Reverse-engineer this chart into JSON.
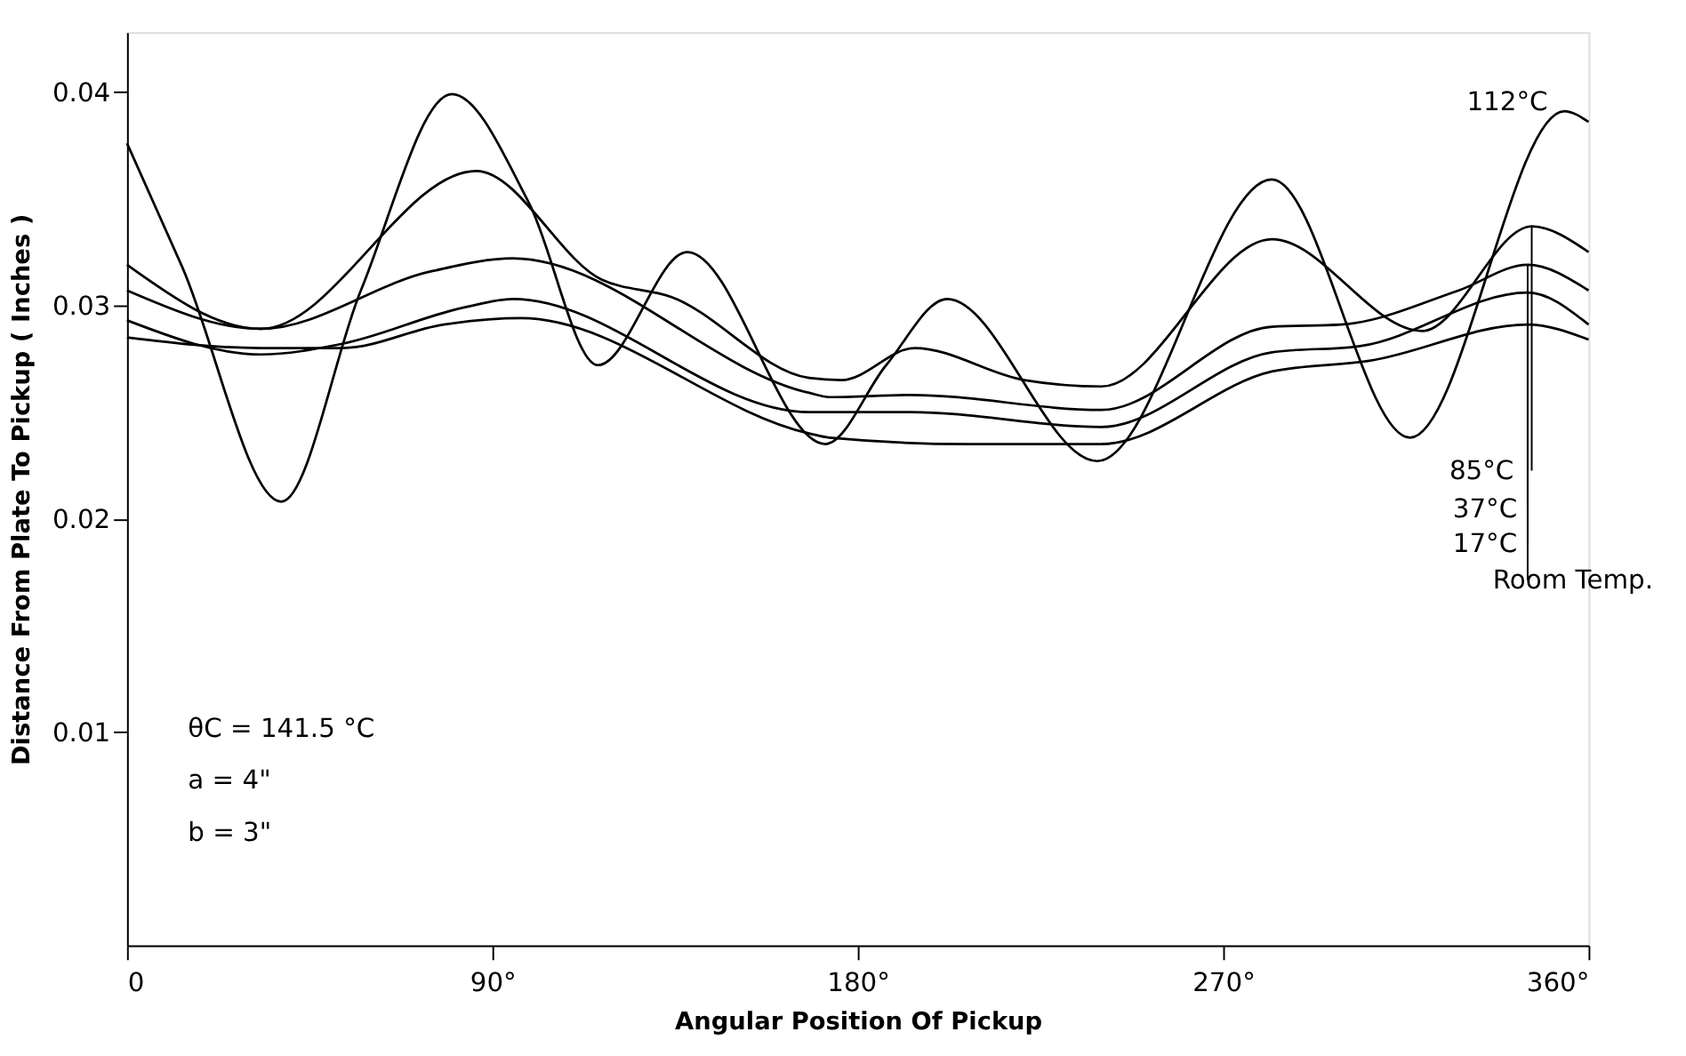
{
  "chart_data": {
    "type": "line",
    "xlabel": "Angular Position Of Pickup",
    "ylabel": "Distance From Plate To Pickup ( Inches )",
    "xlim": [
      0,
      360
    ],
    "ylim": [
      0,
      0.0428
    ],
    "xticks": [
      0,
      {
        "value": 90,
        "label": "90°"
      },
      {
        "value": 180,
        "label": "180°"
      },
      {
        "value": 270,
        "label": "270°"
      },
      {
        "value": 360,
        "label": "360°"
      }
    ],
    "yticks": [
      0.01,
      0.02,
      0.03,
      0.04
    ],
    "grid": false,
    "legend": false,
    "marker": "none",
    "line_style": "solid",
    "annotations": [
      "θC = 141.5 °C",
      "a = 4\"",
      "b = 3\""
    ],
    "series": [
      {
        "name": "112°C",
        "color": "#000000",
        "x": [
          0,
          13.6,
          38,
          57.6,
          80,
          99,
          116,
          138,
          172,
          187,
          202,
          239,
          282,
          316,
          354,
          360
        ],
        "values": [
          0.0376,
          0.0318,
          0.0208,
          0.0307,
          0.0399,
          0.0348,
          0.0272,
          0.0325,
          0.0235,
          0.0272,
          0.0303,
          0.0227,
          0.0359,
          0.0238,
          0.0391,
          0.0386
        ]
      },
      {
        "name": "85°C",
        "color": "#000000",
        "x": [
          0,
          33,
          86,
          117,
          134,
          168,
          176,
          194,
          221,
          240,
          282,
          319,
          346,
          360
        ],
        "values": [
          0.0319,
          0.0289,
          0.0363,
          0.0312,
          0.0304,
          0.0266,
          0.0265,
          0.028,
          0.0265,
          0.0262,
          0.0331,
          0.0288,
          0.0337,
          0.0325
        ]
      },
      {
        "name": "37°C",
        "color": "#000000",
        "x": [
          0,
          33,
          75,
          95,
          168,
          173,
          193,
          240,
          282,
          299,
          328,
          345,
          360
        ],
        "values": [
          0.0307,
          0.0289,
          0.0316,
          0.0322,
          0.0259,
          0.0257,
          0.0258,
          0.0251,
          0.029,
          0.0291,
          0.0307,
          0.0319,
          0.0307
        ]
      },
      {
        "name": "17°C",
        "color": "#000000",
        "x": [
          0,
          33,
          53,
          83,
          95,
          168,
          173,
          193,
          240,
          282,
          304,
          345,
          360
        ],
        "values": [
          0.0293,
          0.0277,
          0.0282,
          0.0299,
          0.0303,
          0.025,
          0.025,
          0.025,
          0.0243,
          0.0278,
          0.0281,
          0.0306,
          0.0291
        ]
      },
      {
        "name": "Room Temp.",
        "color": "#000000",
        "x": [
          0,
          33,
          53,
          78,
          97,
          168,
          173,
          207,
          240,
          282,
          306,
          345,
          360
        ],
        "values": [
          0.0285,
          0.028,
          0.028,
          0.0291,
          0.0294,
          0.024,
          0.0238,
          0.0235,
          0.0235,
          0.0269,
          0.0274,
          0.0291,
          0.0284
        ]
      }
    ]
  }
}
